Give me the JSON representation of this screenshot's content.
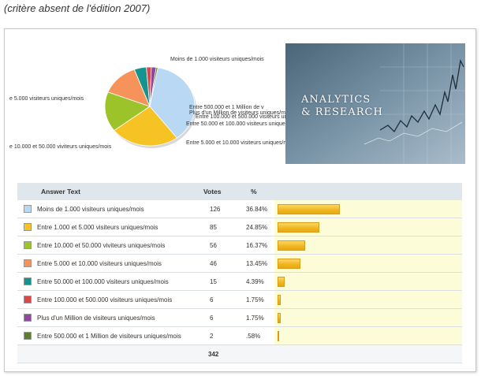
{
  "caption": "(critère absent de l'édition 2007)",
  "photo": {
    "line1": "ANALYTICS",
    "line2": "& RESEARCH"
  },
  "table": {
    "headers": {
      "answer": "Answer Text",
      "votes": "Votes",
      "percent": "%"
    },
    "total": "342"
  },
  "chart_data": {
    "type": "pie",
    "title": "",
    "categories": [
      "Moins de 1.000 visiteurs uniques/mois",
      "Entre 1.000 et 5.000 visiteurs uniques/mois",
      "Entre 10.000 et 50.000 visiteurs uniques/mois",
      "Entre 5.000 et 10.000 visiteurs uniques/mois",
      "Entre 50.000 et 100.000 visiteurs uniques/mois",
      "Entre 100.000 et 500.000 visiteurs uniques/mois",
      "Plus d'un Million de visiteurs uniques/mois",
      "Entre 500.000 et 1 Million de visiteurs uniques/mois"
    ],
    "table_labels": [
      "Moins de 1.000 visiteurs uniques/mois",
      "Entre 1.000 et 5.000 visiteurs uniques/mois",
      "Entre 10.000 et 50.000 viviteurs uniques/mois",
      "Entre 5.000 et 10.000 visiteurs uniques/mois",
      "Entre 50.000 et 100.000 visiteurs uniques/mois",
      "Entre 100.000 et 500.000 visiteurs uniques/mois",
      "Plus d'un Million de visiteurs uniques/mois",
      "Entre 500.000 et 1 Million de visiteurs uniques/mois"
    ],
    "votes": [
      126,
      85,
      56,
      46,
      15,
      6,
      6,
      2
    ],
    "percent_labels": [
      "36.84%",
      "24.85%",
      "16.37%",
      "13.45%",
      "4.39%",
      "1.75%",
      "1.75%",
      ".58%"
    ],
    "values": [
      36.84,
      24.85,
      16.37,
      13.45,
      4.39,
      1.75,
      1.75,
      0.58
    ],
    "colors": [
      "#b9d8f3",
      "#f6c324",
      "#9dc32a",
      "#f5935a",
      "#14948c",
      "#d9474b",
      "#8e4a9a",
      "#5b7f2f"
    ],
    "pie_labels": [
      "Moins de 1.000 visiteurs uniques/mois",
      "e 5.000 visiteurs uniques/mois",
      "e 10.000 et 50.000 viviteurs uniques/mois",
      "Entre 5.000 et 10.000 visiteurs uniques/mois",
      "Entre 50.000 et 100.000 visiteurs uniques/mois",
      "Entre 100.000 et 500.000 visiteurs uniques/mois",
      "Plus d'un Million de visiteurs uniques/mois",
      "Entre 500.000 et 1 Million de v"
    ]
  }
}
